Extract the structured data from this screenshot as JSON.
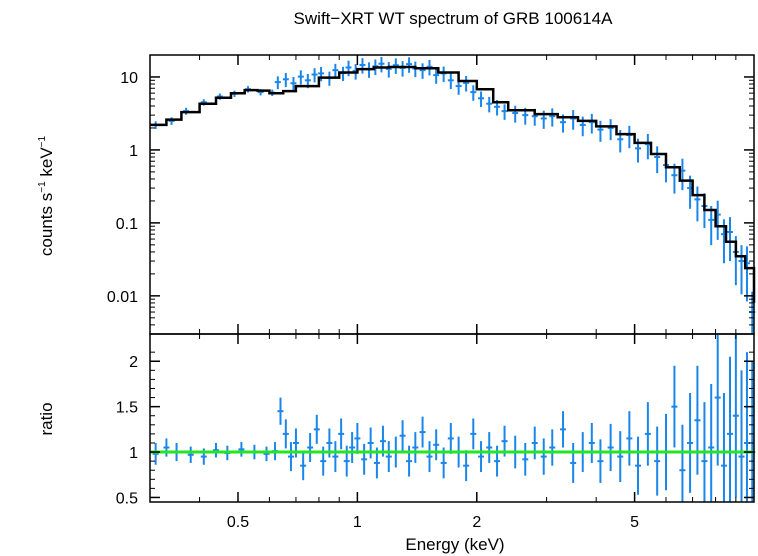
{
  "chart_data": {
    "type": "scatter",
    "title": "Swift−XRT WT spectrum of GRB 100614A",
    "xlabel": "Energy (keV)",
    "x_scale": "log",
    "xlim": [
      0.3,
      10
    ],
    "x_ticks": [
      {
        "value": 0.5,
        "label": "0.5"
      },
      {
        "value": 1,
        "label": "1"
      },
      {
        "value": 2,
        "label": "2"
      },
      {
        "value": 5,
        "label": "5"
      }
    ],
    "colors": {
      "data": "#1a86ea",
      "model": "#000000",
      "unity": "#22e622",
      "frame": "#000000"
    },
    "panels": [
      {
        "name": "spectrum",
        "ylabel": {
          "main": "counts s",
          "exp1": "−1",
          "mid": " keV",
          "exp2": "−1"
        },
        "y_scale": "log",
        "ylim": [
          0.003,
          20
        ],
        "y_ticks": [
          {
            "value": 10,
            "label": "10"
          },
          {
            "value": 1,
            "label": "1"
          },
          {
            "value": 0.1,
            "label": "0.1"
          },
          {
            "value": 0.01,
            "label": "0.01"
          }
        ],
        "series": [
          {
            "kind": "model_step",
            "x": [
              0.3,
              0.33,
              0.36,
              0.4,
              0.44,
              0.48,
              0.52,
              0.56,
              0.6,
              0.65,
              0.7,
              0.8,
              0.9,
              1.0,
              1.1,
              1.2,
              1.4,
              1.6,
              1.8,
              2.0,
              2.2,
              2.4,
              2.8,
              3.2,
              3.6,
              4.0,
              4.5,
              5.0,
              5.5,
              6.0,
              6.5,
              7.0,
              7.5,
              8.0,
              8.5,
              9.0,
              9.5,
              10.0
            ],
            "y": [
              2.2,
              2.6,
              3.3,
              4.3,
              5.2,
              6.0,
              6.6,
              6.5,
              6.0,
              6.4,
              7.5,
              9.8,
              11.5,
              12.8,
              13.5,
              13.7,
              13.2,
              11.5,
              8.8,
              6.8,
              4.5,
              3.5,
              3.1,
              2.8,
              2.5,
              2.1,
              1.65,
              1.25,
              0.88,
              0.58,
              0.38,
              0.24,
              0.15,
              0.09,
              0.055,
              0.035,
              0.024,
              0.008
            ]
          },
          {
            "kind": "data_errorbars",
            "x": [
              0.31,
              0.34,
              0.37,
              0.41,
              0.45,
              0.49,
              0.53,
              0.57,
              0.61,
              0.63,
              0.66,
              0.69,
              0.72,
              0.75,
              0.78,
              0.81,
              0.85,
              0.88,
              0.92,
              0.95,
              0.99,
              1.03,
              1.07,
              1.11,
              1.15,
              1.2,
              1.25,
              1.3,
              1.35,
              1.4,
              1.46,
              1.52,
              1.58,
              1.65,
              1.72,
              1.8,
              1.88,
              1.96,
              2.05,
              2.15,
              2.25,
              2.35,
              2.5,
              2.65,
              2.8,
              2.95,
              3.1,
              3.3,
              3.5,
              3.7,
              3.9,
              4.1,
              4.35,
              4.6,
              4.85,
              5.1,
              5.4,
              5.7,
              6.0,
              6.3,
              6.6,
              6.9,
              7.2,
              7.5,
              7.8,
              8.1,
              8.4,
              8.7,
              9.0,
              9.3,
              9.6,
              9.9
            ],
            "y": [
              2.2,
              2.5,
              3.4,
              4.5,
              5.4,
              5.9,
              6.8,
              6.2,
              6.1,
              8.5,
              9.3,
              8.2,
              10.1,
              9.0,
              10.8,
              11.2,
              9.7,
              12.4,
              11.3,
              13.5,
              12.1,
              14.6,
              12.8,
              14.0,
              15.2,
              12.9,
              14.5,
              13.3,
              15.0,
              13.1,
              12.4,
              13.8,
              10.6,
              11.2,
              9.0,
              7.5,
              8.3,
              6.2,
              5.1,
              4.3,
              3.9,
              3.4,
              3.2,
              3.0,
              2.9,
              2.7,
              2.9,
              2.4,
              2.7,
              2.2,
              2.4,
              1.9,
              2.0,
              1.4,
              1.6,
              1.05,
              1.2,
              0.8,
              0.62,
              0.45,
              0.52,
              0.3,
              0.21,
              0.17,
              0.11,
              0.13,
              0.07,
              0.075,
              0.04,
              0.03,
              0.028,
              0.006
            ],
            "err_frac": [
              0.12,
              0.12,
              0.11,
              0.1,
              0.1,
              0.1,
              0.1,
              0.1,
              0.1,
              0.2,
              0.22,
              0.22,
              0.22,
              0.22,
              0.22,
              0.22,
              0.22,
              0.22,
              0.22,
              0.24,
              0.24,
              0.24,
              0.24,
              0.24,
              0.24,
              0.24,
              0.24,
              0.24,
              0.24,
              0.24,
              0.24,
              0.24,
              0.24,
              0.24,
              0.24,
              0.24,
              0.24,
              0.24,
              0.24,
              0.24,
              0.24,
              0.24,
              0.26,
              0.26,
              0.26,
              0.28,
              0.28,
              0.28,
              0.3,
              0.3,
              0.3,
              0.32,
              0.32,
              0.34,
              0.34,
              0.36,
              0.38,
              0.4,
              0.42,
              0.44,
              0.46,
              0.48,
              0.5,
              0.5,
              0.55,
              0.55,
              0.6,
              0.6,
              0.65,
              0.65,
              0.7,
              0.9
            ]
          }
        ]
      },
      {
        "name": "ratio",
        "ylabel": "ratio",
        "y_scale": "linear",
        "ylim": [
          0.45,
          2.3
        ],
        "y_ticks": [
          {
            "value": 2,
            "label": "2"
          },
          {
            "value": 1.5,
            "label": "1.5"
          },
          {
            "value": 1,
            "label": "1"
          },
          {
            "value": 0.5,
            "label": "0.5"
          }
        ],
        "reference_line": 1,
        "series": [
          {
            "kind": "data_errorbars",
            "x": [
              0.31,
              0.33,
              0.35,
              0.38,
              0.41,
              0.44,
              0.47,
              0.51,
              0.55,
              0.59,
              0.62,
              0.64,
              0.66,
              0.68,
              0.7,
              0.73,
              0.76,
              0.79,
              0.82,
              0.85,
              0.88,
              0.91,
              0.94,
              0.97,
              1.0,
              1.04,
              1.08,
              1.12,
              1.16,
              1.2,
              1.25,
              1.3,
              1.35,
              1.4,
              1.46,
              1.52,
              1.58,
              1.65,
              1.72,
              1.8,
              1.88,
              1.96,
              2.05,
              2.15,
              2.25,
              2.35,
              2.5,
              2.65,
              2.8,
              2.95,
              3.1,
              3.3,
              3.5,
              3.7,
              3.9,
              4.1,
              4.35,
              4.6,
              4.85,
              5.1,
              5.4,
              5.7,
              6.0,
              6.3,
              6.6,
              6.9,
              7.2,
              7.5,
              7.8,
              8.1,
              8.4,
              8.7,
              9.0,
              9.3,
              9.6,
              9.9
            ],
            "y": [
              0.98,
              1.05,
              1.0,
              0.97,
              0.95,
              1.02,
              0.99,
              1.03,
              1.0,
              0.98,
              1.01,
              1.45,
              1.2,
              0.95,
              1.1,
              0.85,
              1.05,
              1.25,
              0.9,
              1.1,
              0.95,
              1.2,
              0.9,
              1.05,
              1.15,
              0.92,
              1.1,
              0.88,
              1.12,
              0.95,
              1.0,
              1.18,
              0.9,
              1.05,
              1.22,
              0.95,
              1.08,
              0.88,
              1.15,
              1.0,
              0.85,
              1.2,
              0.95,
              1.05,
              0.9,
              1.12,
              1.0,
              0.92,
              1.1,
              0.95,
              1.05,
              1.25,
              0.88,
              1.0,
              1.1,
              0.9,
              1.05,
              0.95,
              1.15,
              0.85,
              1.2,
              0.9,
              1.0,
              1.5,
              0.8,
              1.1,
              1.35,
              0.9,
              1.05,
              1.6,
              0.85,
              1.2,
              1.4,
              0.95,
              1.1,
              1.0
            ],
            "err": [
              0.12,
              0.1,
              0.1,
              0.09,
              0.09,
              0.08,
              0.08,
              0.08,
              0.08,
              0.08,
              0.1,
              0.15,
              0.16,
              0.16,
              0.16,
              0.16,
              0.16,
              0.16,
              0.16,
              0.16,
              0.17,
              0.17,
              0.17,
              0.17,
              0.17,
              0.17,
              0.17,
              0.17,
              0.17,
              0.17,
              0.17,
              0.17,
              0.17,
              0.17,
              0.17,
              0.17,
              0.17,
              0.17,
              0.17,
              0.17,
              0.17,
              0.17,
              0.17,
              0.17,
              0.17,
              0.17,
              0.18,
              0.18,
              0.18,
              0.2,
              0.2,
              0.2,
              0.22,
              0.22,
              0.22,
              0.24,
              0.26,
              0.28,
              0.3,
              0.32,
              0.35,
              0.38,
              0.42,
              0.45,
              0.5,
              0.55,
              0.6,
              0.65,
              0.7,
              0.75,
              0.8,
              0.85,
              0.9,
              0.95,
              1.0,
              1.0
            ]
          }
        ]
      }
    ]
  }
}
